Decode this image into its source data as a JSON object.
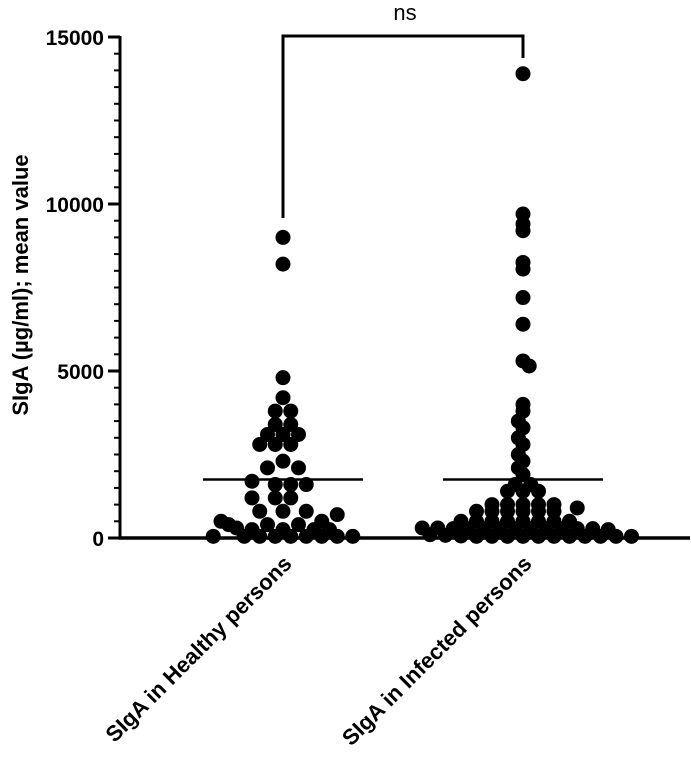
{
  "chart_data": {
    "type": "scatter",
    "ylabel": "SIgA (µg/ml); mean value",
    "ylim": [
      0,
      15000
    ],
    "yticks": [
      {
        "value": 0,
        "label": "0"
      },
      {
        "value": 5000,
        "label": "5000"
      },
      {
        "value": 10000,
        "label": "10000"
      },
      {
        "value": 15000,
        "label": "15000"
      }
    ],
    "grid": false,
    "legend": "none",
    "point_color": "#000000",
    "categories": [
      "SIgA in Healthy persons",
      "SIgA in Infected persons"
    ],
    "significance": {
      "between": [
        0,
        1
      ],
      "label": "ns"
    },
    "series": [
      {
        "category": "SIgA in Healthy persons",
        "mean": 1750,
        "points": [
          {
            "offset": 0,
            "y": 9000
          },
          {
            "offset": 0,
            "y": 8200
          },
          {
            "offset": 0,
            "y": 4800
          },
          {
            "offset": 0,
            "y": 4200
          },
          {
            "offset": -0.5,
            "y": 3800
          },
          {
            "offset": 0.5,
            "y": 3800
          },
          {
            "offset": -0.5,
            "y": 3400
          },
          {
            "offset": 0.5,
            "y": 3400
          },
          {
            "offset": -1,
            "y": 3100
          },
          {
            "offset": 0,
            "y": 3100
          },
          {
            "offset": 1,
            "y": 3100
          },
          {
            "offset": -1.5,
            "y": 2800
          },
          {
            "offset": -0.5,
            "y": 2800
          },
          {
            "offset": 0.5,
            "y": 2800
          },
          {
            "offset": 0,
            "y": 2300
          },
          {
            "offset": -1,
            "y": 2100
          },
          {
            "offset": 1,
            "y": 2100
          },
          {
            "offset": -2,
            "y": 1700
          },
          {
            "offset": -0.5,
            "y": 1600
          },
          {
            "offset": 0.5,
            "y": 1600
          },
          {
            "offset": 1.5,
            "y": 1600
          },
          {
            "offset": -2,
            "y": 1200
          },
          {
            "offset": -0.5,
            "y": 1200
          },
          {
            "offset": 0.5,
            "y": 1200
          },
          {
            "offset": -1.5,
            "y": 800
          },
          {
            "offset": 0,
            "y": 800
          },
          {
            "offset": 1.5,
            "y": 800
          },
          {
            "offset": 3.5,
            "y": 700
          },
          {
            "offset": -4,
            "y": 500
          },
          {
            "offset": 2.5,
            "y": 500
          },
          {
            "offset": -3.5,
            "y": 400
          },
          {
            "offset": -1,
            "y": 400
          },
          {
            "offset": 1,
            "y": 400
          },
          {
            "offset": -3,
            "y": 300
          },
          {
            "offset": -2,
            "y": 250
          },
          {
            "offset": 0,
            "y": 250
          },
          {
            "offset": 2,
            "y": 250
          },
          {
            "offset": 3,
            "y": 250
          },
          {
            "offset": -4.5,
            "y": 50
          },
          {
            "offset": -2.5,
            "y": 50
          },
          {
            "offset": -1.5,
            "y": 50
          },
          {
            "offset": -0.5,
            "y": 50
          },
          {
            "offset": 0.5,
            "y": 50
          },
          {
            "offset": 1.5,
            "y": 50
          },
          {
            "offset": 2.5,
            "y": 50
          },
          {
            "offset": 3.5,
            "y": 50
          },
          {
            "offset": 4.5,
            "y": 50
          }
        ]
      },
      {
        "category": "SIgA in Infected persons",
        "mean": 1750,
        "points": [
          {
            "offset": 0,
            "y": 13900
          },
          {
            "offset": 0,
            "y": 9700
          },
          {
            "offset": 0,
            "y": 9400
          },
          {
            "offset": 0,
            "y": 9200
          },
          {
            "offset": 0,
            "y": 8250
          },
          {
            "offset": 0,
            "y": 8050
          },
          {
            "offset": 0,
            "y": 7200
          },
          {
            "offset": 0,
            "y": 6400
          },
          {
            "offset": 0,
            "y": 5300
          },
          {
            "offset": 0.4,
            "y": 5150
          },
          {
            "offset": 0,
            "y": 4000
          },
          {
            "offset": 0,
            "y": 3800
          },
          {
            "offset": -0.3,
            "y": 3500
          },
          {
            "offset": 0,
            "y": 3300
          },
          {
            "offset": -0.3,
            "y": 3000
          },
          {
            "offset": 0,
            "y": 2800
          },
          {
            "offset": -0.3,
            "y": 2500
          },
          {
            "offset": 0,
            "y": 2300
          },
          {
            "offset": -0.3,
            "y": 2100
          },
          {
            "offset": 0,
            "y": 1900
          },
          {
            "offset": -0.5,
            "y": 1600
          },
          {
            "offset": 0.5,
            "y": 1600
          },
          {
            "offset": -1,
            "y": 1400
          },
          {
            "offset": 0,
            "y": 1400
          },
          {
            "offset": 1,
            "y": 1400
          },
          {
            "offset": -2,
            "y": 1000
          },
          {
            "offset": -1,
            "y": 1000
          },
          {
            "offset": 0,
            "y": 1000
          },
          {
            "offset": 1,
            "y": 1000
          },
          {
            "offset": 2,
            "y": 1000
          },
          {
            "offset": -3,
            "y": 800
          },
          {
            "offset": -2,
            "y": 800
          },
          {
            "offset": -1,
            "y": 800
          },
          {
            "offset": 0,
            "y": 800
          },
          {
            "offset": 1,
            "y": 800
          },
          {
            "offset": 2,
            "y": 800
          },
          {
            "offset": 3.5,
            "y": 900
          },
          {
            "offset": -4,
            "y": 500
          },
          {
            "offset": -3,
            "y": 500
          },
          {
            "offset": -2,
            "y": 500
          },
          {
            "offset": -1,
            "y": 500
          },
          {
            "offset": 0,
            "y": 500
          },
          {
            "offset": 1,
            "y": 500
          },
          {
            "offset": 2,
            "y": 500
          },
          {
            "offset": 3,
            "y": 500
          },
          {
            "offset": -6.5,
            "y": 300
          },
          {
            "offset": -5.5,
            "y": 300
          },
          {
            "offset": -4.5,
            "y": 280
          },
          {
            "offset": -3.5,
            "y": 280
          },
          {
            "offset": -2.5,
            "y": 280
          },
          {
            "offset": -1.5,
            "y": 280
          },
          {
            "offset": -0.5,
            "y": 280
          },
          {
            "offset": 0.5,
            "y": 280
          },
          {
            "offset": 1.5,
            "y": 280
          },
          {
            "offset": 2.5,
            "y": 280
          },
          {
            "offset": 3.5,
            "y": 280
          },
          {
            "offset": 4.5,
            "y": 280
          },
          {
            "offset": 5.5,
            "y": 250
          },
          {
            "offset": -6,
            "y": 100
          },
          {
            "offset": -5,
            "y": 80
          },
          {
            "offset": -4,
            "y": 60
          },
          {
            "offset": -3,
            "y": 50
          },
          {
            "offset": -2,
            "y": 50
          },
          {
            "offset": -1,
            "y": 50
          },
          {
            "offset": 0,
            "y": 50
          },
          {
            "offset": 1,
            "y": 50
          },
          {
            "offset": 2,
            "y": 50
          },
          {
            "offset": 3,
            "y": 50
          },
          {
            "offset": 4,
            "y": 50
          },
          {
            "offset": 5,
            "y": 50
          },
          {
            "offset": 6,
            "y": 50
          },
          {
            "offset": 7,
            "y": 50
          }
        ]
      }
    ]
  }
}
